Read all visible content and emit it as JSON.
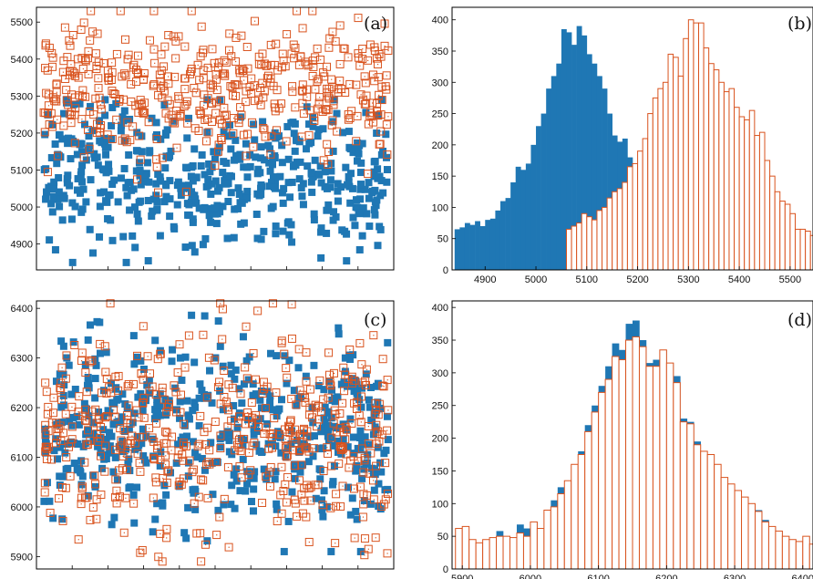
{
  "colors": {
    "series_a": "#1f77b4",
    "series_b": "#d9531e",
    "axis": "#000000",
    "background": "#ffffff"
  },
  "panels": {
    "a": {
      "label": "(a)"
    },
    "b": {
      "label": "(b)"
    },
    "c": {
      "label": "(c)"
    },
    "d": {
      "label": "(d)"
    }
  },
  "chart_data": [
    {
      "id": "a",
      "type": "scatter",
      "label": "(a)",
      "ylim": [
        4830,
        5540
      ],
      "yticks": [
        4900,
        5000,
        5100,
        5200,
        5300,
        5400,
        5500
      ],
      "xticks_count": 10,
      "grid": false,
      "series": [
        {
          "marker": "filled-square",
          "color": "#1f77b4",
          "n_points": 520,
          "y_range": [
            4850,
            5290
          ],
          "y_center": 5085,
          "y_spread": 95
        },
        {
          "marker": "open-square-dot",
          "color": "#d9531e",
          "n_points": 480,
          "y_range": [
            5020,
            5530
          ],
          "y_center": 5310,
          "y_spread": 95
        }
      ]
    },
    {
      "id": "b",
      "type": "bar",
      "label": "(b)",
      "ylim": [
        0,
        420
      ],
      "yticks": [
        0,
        50,
        100,
        150,
        200,
        250,
        300,
        350,
        400
      ],
      "xlim": [
        4835,
        5545
      ],
      "xticks": [
        4900,
        5000,
        5100,
        5200,
        5300,
        5400,
        5500
      ],
      "bin_width": 10,
      "grid": false,
      "series": [
        {
          "style": "filled",
          "color": "#1f77b4",
          "x": [
            4840,
            4850,
            4860,
            4870,
            4880,
            4890,
            4900,
            4910,
            4920,
            4930,
            4940,
            4950,
            4960,
            4970,
            4980,
            4990,
            5000,
            5010,
            5020,
            5030,
            5040,
            5050,
            5060,
            5070,
            5080,
            5090,
            5100,
            5110,
            5120,
            5130,
            5140,
            5150,
            5160,
            5170,
            5180
          ],
          "values": [
            65,
            68,
            75,
            72,
            78,
            70,
            80,
            82,
            95,
            110,
            115,
            140,
            165,
            160,
            170,
            200,
            230,
            250,
            290,
            310,
            330,
            385,
            380,
            360,
            390,
            375,
            345,
            330,
            310,
            290,
            250,
            215,
            205,
            210,
            180
          ]
        },
        {
          "style": "outline",
          "color": "#d9531e",
          "x": [
            5060,
            5070,
            5080,
            5090,
            5100,
            5110,
            5120,
            5130,
            5140,
            5150,
            5160,
            5170,
            5180,
            5190,
            5200,
            5210,
            5220,
            5230,
            5240,
            5250,
            5260,
            5270,
            5280,
            5290,
            5300,
            5310,
            5320,
            5330,
            5340,
            5350,
            5360,
            5370,
            5380,
            5390,
            5400,
            5410,
            5420,
            5430,
            5440,
            5450,
            5460,
            5470,
            5480,
            5490,
            5500,
            5510,
            5520,
            5530,
            5540
          ],
          "values": [
            65,
            70,
            75,
            90,
            85,
            80,
            95,
            100,
            115,
            125,
            130,
            140,
            165,
            170,
            190,
            210,
            250,
            275,
            290,
            300,
            345,
            340,
            310,
            370,
            400,
            395,
            395,
            355,
            330,
            320,
            300,
            285,
            290,
            260,
            245,
            240,
            255,
            215,
            220,
            175,
            150,
            125,
            110,
            105,
            90,
            65,
            65,
            62,
            55
          ]
        }
      ]
    },
    {
      "id": "c",
      "type": "scatter",
      "label": "(c)",
      "ylim": [
        5875,
        6415
      ],
      "yticks": [
        5900,
        6000,
        6100,
        6200,
        6300,
        6400
      ],
      "xticks_count": 10,
      "grid": false,
      "series": [
        {
          "marker": "filled-square",
          "color": "#1f77b4",
          "n_points": 520,
          "y_range": [
            5910,
            6400
          ],
          "y_center": 6150,
          "y_spread": 90
        },
        {
          "marker": "open-square-dot",
          "color": "#d9531e",
          "n_points": 520,
          "y_range": [
            5890,
            6410
          ],
          "y_center": 6150,
          "y_spread": 95
        }
      ]
    },
    {
      "id": "d",
      "type": "bar",
      "label": "(d)",
      "ylim": [
        0,
        410
      ],
      "yticks": [
        0,
        50,
        100,
        150,
        200,
        250,
        300,
        350,
        400
      ],
      "xlim": [
        5885,
        6415
      ],
      "xticks": [
        5900,
        6000,
        6100,
        6200,
        6300,
        6400
      ],
      "bin_width": 10,
      "grid": false,
      "series": [
        {
          "style": "filled",
          "color": "#1f77b4",
          "x": [
            5890,
            5900,
            5910,
            5920,
            5930,
            5940,
            5950,
            5960,
            5970,
            5980,
            5990,
            6000,
            6010,
            6020,
            6030,
            6040,
            6050,
            6060,
            6070,
            6080,
            6090,
            6100,
            6110,
            6120,
            6130,
            6140,
            6150,
            6160,
            6170,
            6180,
            6190,
            6200,
            6210,
            6220,
            6230,
            6240,
            6250,
            6260,
            6270,
            6280,
            6290,
            6300,
            6310,
            6320,
            6330,
            6340,
            6350,
            6360,
            6370,
            6380,
            6390,
            6400,
            6410
          ],
          "values": [
            62,
            65,
            45,
            40,
            45,
            48,
            58,
            50,
            48,
            68,
            62,
            72,
            62,
            90,
            105,
            125,
            135,
            160,
            180,
            220,
            250,
            280,
            310,
            345,
            335,
            375,
            380,
            350,
            315,
            320,
            335,
            315,
            295,
            230,
            225,
            195,
            180,
            175,
            160,
            140,
            130,
            120,
            110,
            100,
            90,
            75,
            65,
            58,
            50,
            45,
            42,
            50,
            38
          ]
        },
        {
          "style": "outline",
          "color": "#d9531e",
          "x": [
            5890,
            5900,
            5910,
            5920,
            5930,
            5940,
            5950,
            5960,
            5970,
            5980,
            5990,
            6000,
            6010,
            6020,
            6030,
            6040,
            6050,
            6060,
            6070,
            6080,
            6090,
            6100,
            6110,
            6120,
            6130,
            6140,
            6150,
            6160,
            6170,
            6180,
            6190,
            6200,
            6210,
            6220,
            6230,
            6240,
            6250,
            6260,
            6270,
            6280,
            6290,
            6300,
            6310,
            6320,
            6330,
            6340,
            6350,
            6360,
            6370,
            6380,
            6390,
            6400,
            6410
          ],
          "values": [
            62,
            65,
            45,
            40,
            45,
            48,
            50,
            50,
            48,
            55,
            50,
            72,
            62,
            90,
            95,
            115,
            135,
            160,
            175,
            210,
            240,
            270,
            290,
            325,
            320,
            350,
            355,
            340,
            310,
            310,
            335,
            315,
            285,
            225,
            222,
            190,
            180,
            175,
            160,
            140,
            130,
            120,
            110,
            100,
            88,
            72,
            65,
            58,
            50,
            45,
            42,
            50,
            38
          ]
        }
      ]
    }
  ]
}
